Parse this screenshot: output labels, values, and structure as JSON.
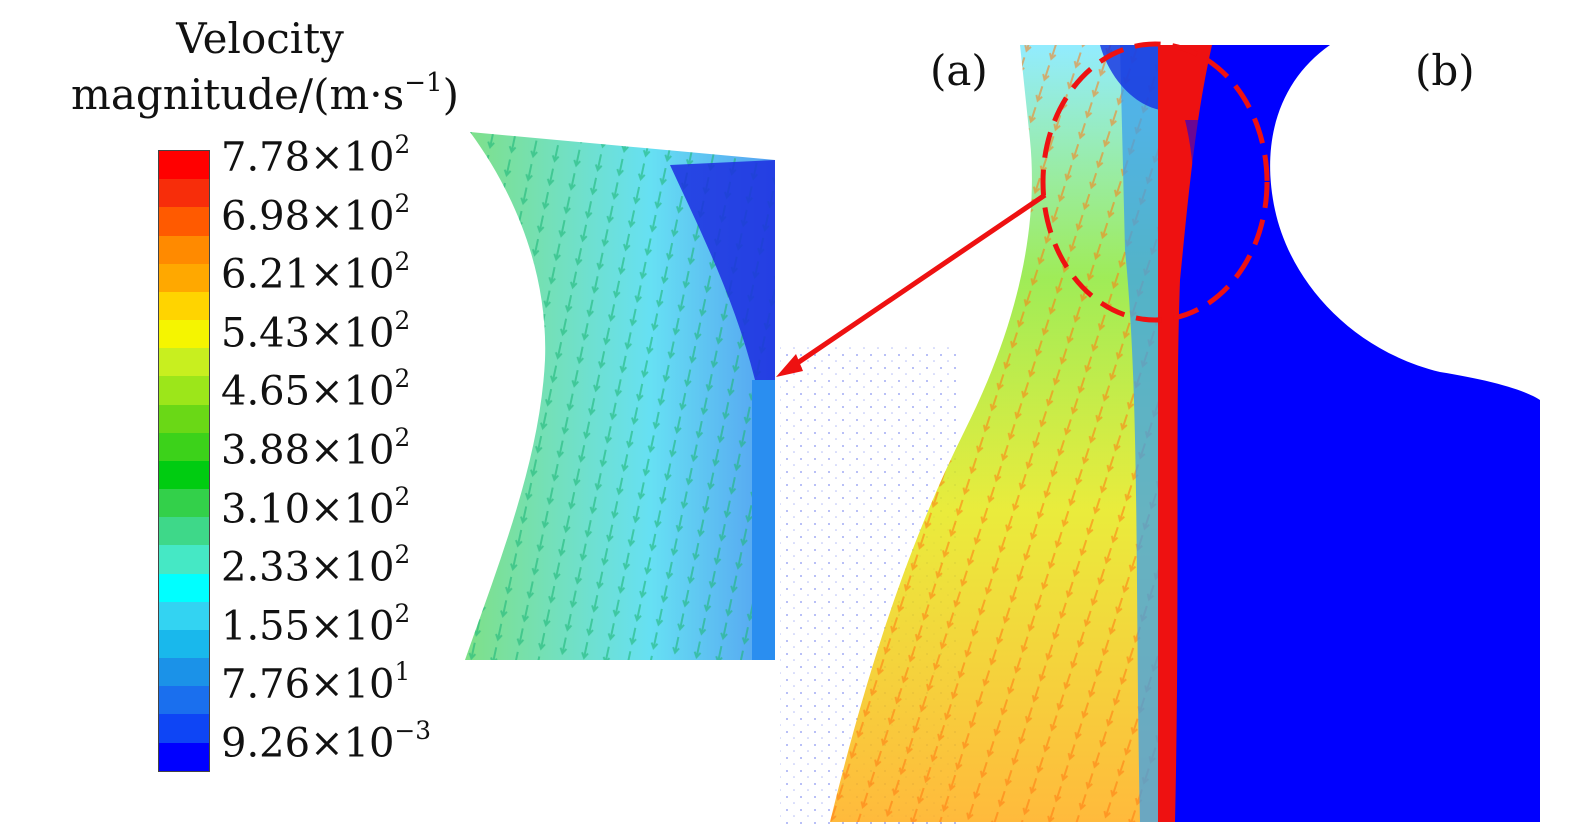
{
  "legend": {
    "title_line1": "Velocity",
    "title_line2_main": "magnitude/(m·s",
    "title_line2_exp": "−1",
    "title_line2_close": ")",
    "bands": [
      "#ff0000",
      "#f72d0a",
      "#ff5a00",
      "#ff8a00",
      "#ffa800",
      "#ffd400",
      "#f5f500",
      "#c8ef1f",
      "#9ce61a",
      "#6ad816",
      "#3cd21a",
      "#00cc11",
      "#33d04a",
      "#3ed889",
      "#45e8c5",
      "#00ffff",
      "#33d3f2",
      "#19b8ec",
      "#1b92e8",
      "#1a6fee",
      "#0e45f5",
      "#0000ff"
    ],
    "ticks": [
      {
        "mant": "7.78",
        "exp": "2"
      },
      {
        "mant": "6.98",
        "exp": "2"
      },
      {
        "mant": "6.21",
        "exp": "2"
      },
      {
        "mant": "5.43",
        "exp": "2"
      },
      {
        "mant": "4.65",
        "exp": "2"
      },
      {
        "mant": "3.88",
        "exp": "2"
      },
      {
        "mant": "3.10",
        "exp": "2"
      },
      {
        "mant": "2.33",
        "exp": "2"
      },
      {
        "mant": "1.55",
        "exp": "2"
      },
      {
        "mant": "7.76",
        "exp": "1"
      },
      {
        "mant": "9.26",
        "exp": "−3"
      }
    ],
    "times_symbol": "×",
    "base": "10"
  },
  "panels": {
    "a_label": "(a)",
    "b_label": "(b)"
  },
  "colors": {
    "solid_blue": "#0000ff",
    "highlight_red": "#ee1111"
  }
}
